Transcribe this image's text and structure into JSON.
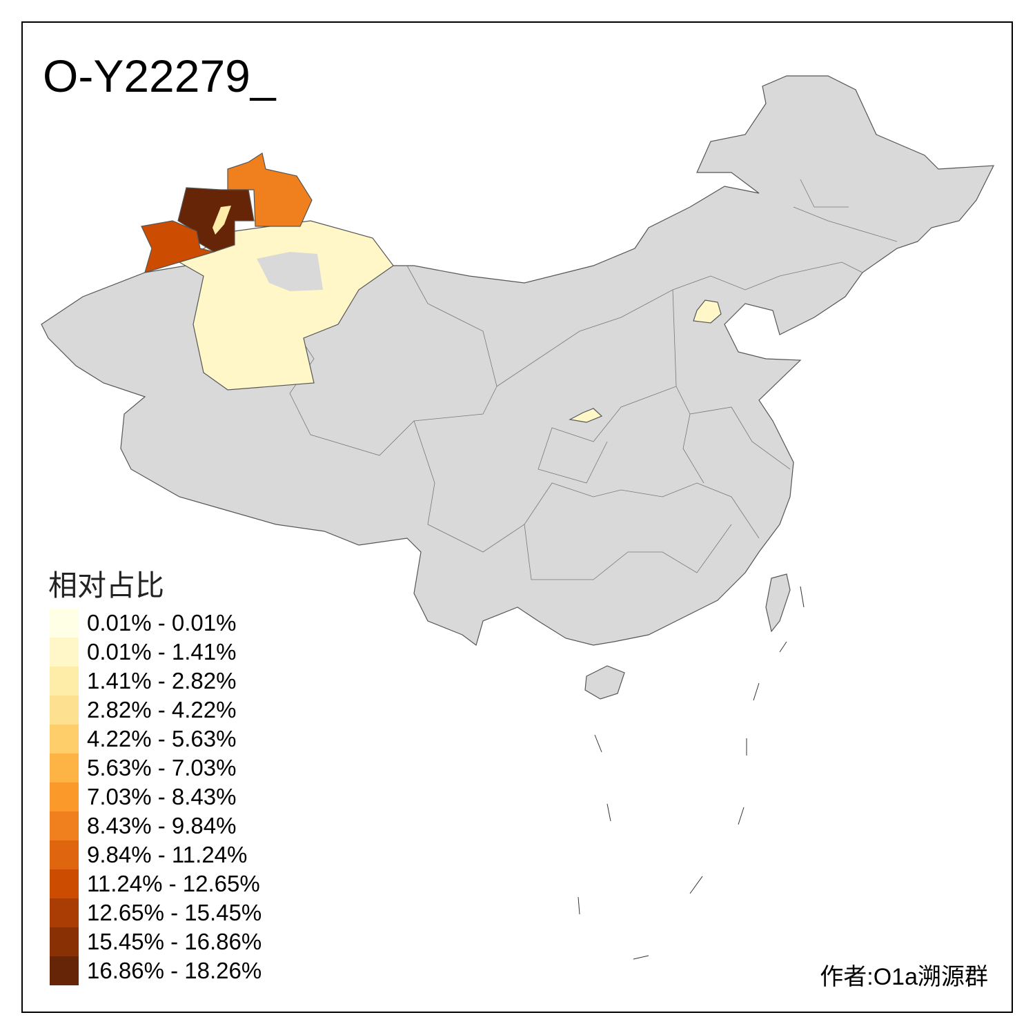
{
  "title": "O-Y22279_",
  "legend": {
    "title": "相对占比",
    "items": [
      {
        "label": "0.01% - 0.01%",
        "color": "#FFFFE5"
      },
      {
        "label": "0.01% - 1.41%",
        "color": "#FFF7C8"
      },
      {
        "label": "1.41% - 2.82%",
        "color": "#FEEDA9"
      },
      {
        "label": "2.82% - 4.22%",
        "color": "#FEE190"
      },
      {
        "label": "4.22% - 5.63%",
        "color": "#FECE6A"
      },
      {
        "label": "5.63% - 7.03%",
        "color": "#FEB444"
      },
      {
        "label": "7.03% - 8.43%",
        "color": "#FB9A2B"
      },
      {
        "label": "8.43% - 9.84%",
        "color": "#F0801D"
      },
      {
        "label": "9.84% - 11.24%",
        "color": "#E0650F"
      },
      {
        "label": "11.24% - 12.65%",
        "color": "#CC4C02"
      },
      {
        "label": "12.65% - 15.45%",
        "color": "#AA3D04"
      },
      {
        "label": "15.45% - 16.86%",
        "color": "#8A3005"
      },
      {
        "label": "16.86% - 18.26%",
        "color": "#662506"
      }
    ]
  },
  "map": {
    "base_color": "#D9D9D9",
    "border_color": "#555555",
    "highlighted_regions": [
      {
        "region": "Xinjiang north (Altay)",
        "color": "#F0801D"
      },
      {
        "region": "Xinjiang north-west (Tacheng)",
        "color": "#662506"
      },
      {
        "region": "Xinjiang west (Ili)",
        "color": "#CC4C02"
      },
      {
        "region": "Xinjiang east/south",
        "color": "#FFF7C8"
      },
      {
        "region": "Beijing",
        "color": "#FFF7C8"
      },
      {
        "region": "Shaanxi (Xi'an area)",
        "color": "#FFF7C8"
      }
    ]
  },
  "author": "作者:O1a溯源群"
}
